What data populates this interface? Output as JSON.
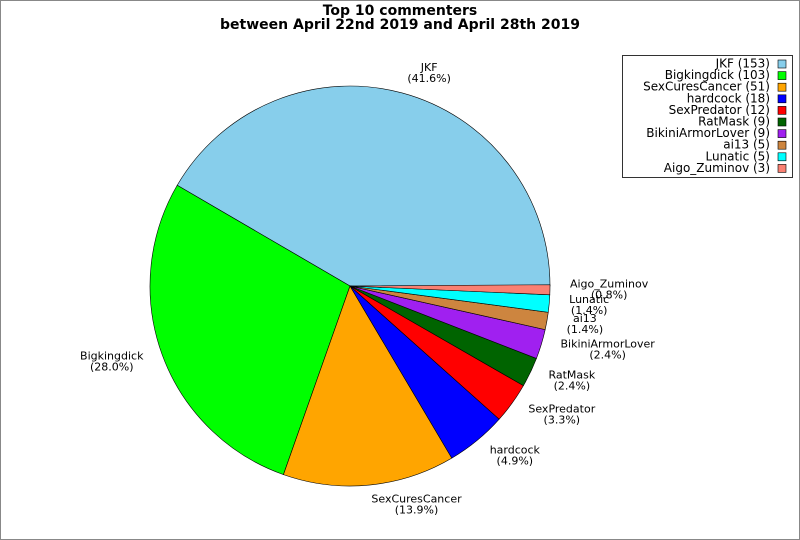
{
  "chart_data": {
    "type": "pie",
    "title": "Top 10 commenters",
    "subtitle": "between April 22nd 2019 and April 28th 2019",
    "categories": [
      "JKF",
      "Bigkingdick",
      "SexCuresCancer",
      "hardcock",
      "SexPredator",
      "RatMask",
      "BikiniArmorLover",
      "ai13",
      "Lunatic",
      "Aigo_Zuminov"
    ],
    "values": [
      41.6,
      28.0,
      13.9,
      4.9,
      3.3,
      2.4,
      2.4,
      1.4,
      1.4,
      0.8
    ],
    "value_labels": [
      "(41.6%)",
      "(28.0%)",
      "(13.9%)",
      "(4.9%)",
      "(3.3%)",
      "(2.4%)",
      "(2.4%)",
      "(1.4%)",
      "(1.4%)",
      "(0.8%)"
    ],
    "legend_labels": [
      "JKF (153)",
      "Bigkingdick (103)",
      "SexCuresCancer (51)",
      "hardcock (18)",
      "SexPredator (12)",
      "RatMask (9)",
      "BikiniArmorLover (9)",
      "ai13 (5)",
      "Lunatic (5)",
      "Aigo_Zuminov (3)"
    ],
    "colors": [
      "#87ceeb",
      "#00ff00",
      "#ffa500",
      "#0000ff",
      "#ff0000",
      "#006400",
      "#a020f0",
      "#cd853f",
      "#00ffff",
      "#fa8072"
    ],
    "legend": "upper right"
  }
}
